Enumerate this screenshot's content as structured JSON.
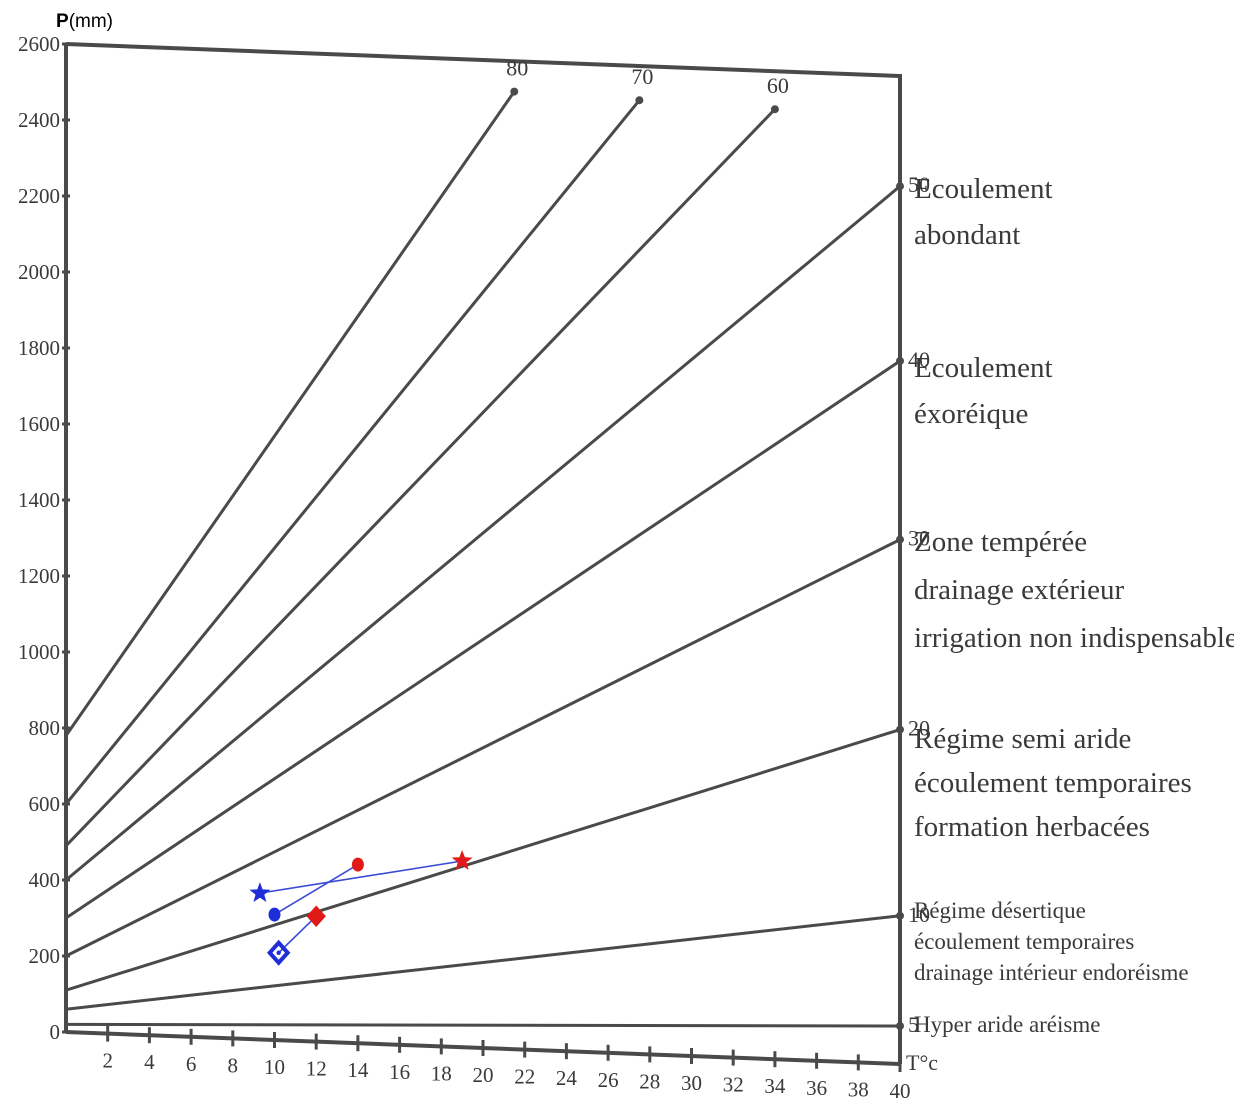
{
  "chart_data": {
    "type": "line",
    "title": "",
    "ylabel_prefix": "P",
    "ylabel_unit": "(mm)",
    "xlabel": "T°c",
    "xlim": [
      0,
      40
    ],
    "ylim": [
      0,
      2600
    ],
    "x_ticks": [
      2,
      4,
      6,
      8,
      10,
      12,
      14,
      16,
      18,
      20,
      22,
      24,
      26,
      28,
      30,
      32,
      34,
      36,
      38,
      40
    ],
    "y_ticks": [
      0,
      200,
      400,
      600,
      800,
      1000,
      1200,
      1400,
      1600,
      1800,
      2000,
      2200,
      2400,
      2600
    ],
    "index_lines": [
      {
        "label": "80",
        "x": [
          0,
          21.5
        ],
        "y": [
          780,
          2520
        ]
      },
      {
        "label": "70",
        "x": [
          0,
          27.5
        ],
        "y": [
          600,
          2510
        ]
      },
      {
        "label": "60",
        "x": [
          0,
          34
        ],
        "y": [
          490,
          2500
        ]
      },
      {
        "label": "50",
        "x": [
          0,
          40
        ],
        "y": [
          400,
          2310
        ]
      },
      {
        "label": "40",
        "x": [
          0,
          40
        ],
        "y": [
          300,
          1850
        ]
      },
      {
        "label": "30",
        "x": [
          0,
          40
        ],
        "y": [
          200,
          1380
        ]
      },
      {
        "label": "20",
        "x": [
          0,
          40
        ],
        "y": [
          110,
          880
        ]
      },
      {
        "label": "10",
        "x": [
          0,
          40
        ],
        "y": [
          60,
          390
        ]
      },
      {
        "label": "5",
        "x": [
          0,
          40
        ],
        "y": [
          20,
          100
        ]
      }
    ],
    "zones": [
      {
        "lines": [
          "Ecoulement",
          "abondant"
        ]
      },
      {
        "lines": [
          "Ecoulement",
          "éxoréique"
        ]
      },
      {
        "lines": [
          "Zone tempérée",
          "drainage extérieur",
          "irrigation non indispensable"
        ]
      },
      {
        "lines": [
          "Régime semi aride",
          "écoulement temporaires",
          "formation herbacées"
        ]
      },
      {
        "lines": [
          "Régime désertique",
          "écoulement temporaires",
          "drainage intérieur endoréisme"
        ]
      },
      {
        "lines": [
          "Hyper aride aréisme"
        ]
      }
    ],
    "stations": [
      {
        "marker": "star",
        "points": [
          {
            "x": 9.3,
            "y": 385,
            "color": "#1f2ed8"
          },
          {
            "x": 19,
            "y": 490,
            "color": "#e01919"
          }
        ]
      },
      {
        "marker": "circle",
        "points": [
          {
            "x": 10,
            "y": 330,
            "color": "#1f2ed8"
          },
          {
            "x": 14,
            "y": 470,
            "color": "#e01919"
          }
        ]
      },
      {
        "marker": "diamond",
        "points": [
          {
            "x": 10.2,
            "y": 230,
            "color": "#1f2ed8"
          },
          {
            "x": 12,
            "y": 330,
            "color": "#e01919"
          }
        ]
      }
    ],
    "connector_color": "#3a4bd6"
  }
}
